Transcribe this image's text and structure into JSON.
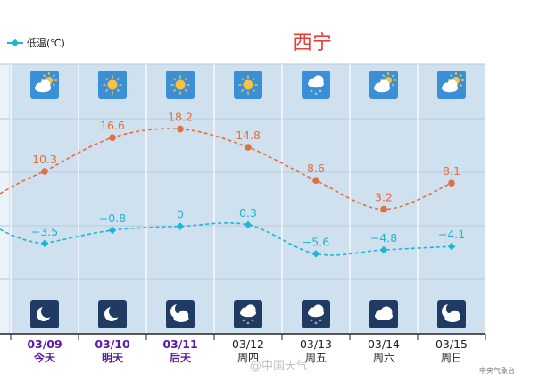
{
  "legend": {
    "low_label": "低温(℃)"
  },
  "title": "西宁",
  "credit": "中央气象台",
  "watermark": "@中国天气",
  "colors": {
    "high": "#e07040",
    "low": "#1cb5d8",
    "band": "#cfe0ef",
    "title": "#e0423d",
    "day_label": "#5a1aa6"
  },
  "days": [
    {
      "date": "03/09",
      "name": "今天",
      "highlight": true,
      "day_icon": "partly-cloudy-icon",
      "night_icon": "moon-clear-icon"
    },
    {
      "date": "03/10",
      "name": "明天",
      "highlight": true,
      "day_icon": "sunny-icon",
      "night_icon": "moon-clear-icon"
    },
    {
      "date": "03/11",
      "name": "后天",
      "highlight": true,
      "day_icon": "sunny-icon",
      "night_icon": "moon-cloudy-icon"
    },
    {
      "date": "03/12",
      "name": "周四",
      "highlight": false,
      "day_icon": "sunny-icon",
      "night_icon": "cloud-snow-icon"
    },
    {
      "date": "03/13",
      "name": "周五",
      "highlight": false,
      "day_icon": "cloud-snow-icon",
      "night_icon": "cloud-snow-icon"
    },
    {
      "date": "03/14",
      "name": "周六",
      "highlight": false,
      "day_icon": "partly-cloudy-icon",
      "night_icon": "cloudy-icon"
    },
    {
      "date": "03/15",
      "name": "周日",
      "highlight": false,
      "day_icon": "partly-cloudy-icon",
      "night_icon": "moon-cloudy-icon"
    }
  ],
  "chart_data": {
    "type": "line",
    "categories": [
      "03/09",
      "03/10",
      "03/11",
      "03/12",
      "03/13",
      "03/14",
      "03/15"
    ],
    "series": [
      {
        "key": "high",
        "values": [
          10.3,
          16.6,
          18.2,
          14.8,
          8.6,
          3.2,
          8.1
        ],
        "labels": [
          "10.3",
          "16.6",
          "18.2",
          "14.8",
          "8.6",
          "3.2",
          "8.1"
        ]
      },
      {
        "name": "低温(℃)",
        "key": "low",
        "values": [
          -3.5,
          -0.8,
          0,
          0.3,
          -5.6,
          -4.8,
          -4.1
        ],
        "labels": [
          "−3.5",
          "−0.8",
          "0",
          "0.3",
          "−5.6",
          "−4.8",
          "−4.1"
        ]
      }
    ],
    "grid": true
  }
}
